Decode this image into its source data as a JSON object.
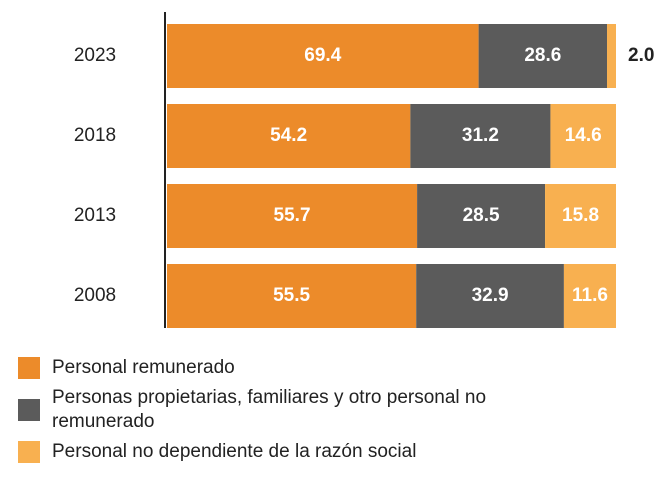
{
  "chart_data": {
    "type": "stacked_bar_horizontal",
    "categories": [
      "2023",
      "2018",
      "2013",
      "2008"
    ],
    "series": [
      {
        "name": "Personal remunerado",
        "color": "#ec8b2a",
        "values": [
          69.4,
          54.2,
          55.7,
          55.5
        ]
      },
      {
        "name": "Personas propietarias, familiares y otro personal no remunerado",
        "color": "#5b5b5b",
        "values": [
          28.6,
          31.2,
          28.5,
          32.9
        ]
      },
      {
        "name": "Personal no dependiente de la razón social",
        "color": "#f8b050",
        "values": [
          2.0,
          14.6,
          15.8,
          11.6
        ]
      }
    ],
    "value_labels": [
      [
        "69.4",
        "54.2",
        "55.7",
        "55.5"
      ],
      [
        "28.6",
        "31.2",
        "28.5",
        "32.9"
      ],
      [
        "2.0",
        "14.6",
        "15.8",
        "11.6"
      ]
    ],
    "xlim": [
      0,
      100
    ]
  }
}
